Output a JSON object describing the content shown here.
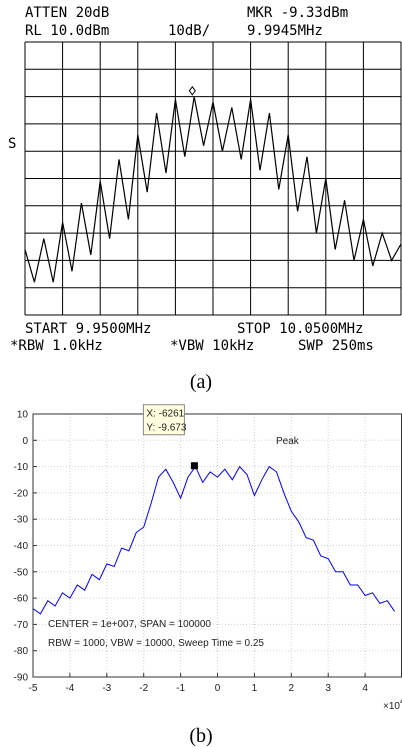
{
  "chart_data": [
    {
      "type": "line",
      "caption": "(a)",
      "header": [
        "ATTEN 20dB",
        "RL 10.0dBm",
        "10dB/",
        "MKR -9.33dBm",
        "9.9945MHz"
      ],
      "side_label": "S",
      "footer": [
        "START 9.9500MHz",
        "STOP 10.0500MHz",
        "*RBW 1.0kHz",
        "*VBW 10kHz",
        "SWP 250ms"
      ],
      "x": [
        9.95,
        9.9525,
        9.955,
        9.9575,
        9.96,
        9.9625,
        9.965,
        9.9675,
        9.97,
        9.9725,
        9.975,
        9.9775,
        9.98,
        9.9825,
        9.985,
        9.9875,
        9.99,
        9.9925,
        9.995,
        9.9975,
        10,
        10.0025,
        10.005,
        10.0075,
        10.01,
        10.0125,
        10.015,
        10.0175,
        10.02,
        10.0225,
        10.025,
        10.0275,
        10.03,
        10.0325,
        10.035,
        10.0375,
        10.04,
        10.0425,
        10.045,
        10.0475,
        10.05
      ],
      "series": [
        {
          "color": "#000000",
          "values": [
            -66,
            -78,
            -62,
            -78,
            -56,
            -74,
            -49,
            -68,
            -41,
            -62,
            -33,
            -55,
            -24,
            -45,
            -16,
            -38,
            -11,
            -32,
            -10,
            -28,
            -12,
            -30,
            -14,
            -33,
            -11,
            -37,
            -16,
            -44,
            -24,
            -52,
            -32,
            -60,
            -40,
            -66,
            -48,
            -70,
            -55,
            -72,
            -60,
            -70,
            -64
          ]
        }
      ],
      "marker": {
        "x": 9.9945,
        "y": -9.33
      },
      "xlim": [
        9.95,
        10.05
      ],
      "ylim": [
        -90,
        10
      ],
      "grid_divisions": [
        10,
        10
      ]
    },
    {
      "type": "line",
      "caption": "(b)",
      "x": [
        -5,
        -4.8,
        -4.6,
        -4.4,
        -4.2,
        -4,
        -3.8,
        -3.6,
        -3.4,
        -3.2,
        -3,
        -2.8,
        -2.6,
        -2.4,
        -2.2,
        -2,
        -1.8,
        -1.6,
        -1.4,
        -1.2,
        -1,
        -0.8,
        -0.6,
        -0.4,
        -0.2,
        0,
        0.2,
        0.4,
        0.6,
        0.8,
        1,
        1.2,
        1.4,
        1.6,
        1.8,
        2,
        2.2,
        2.4,
        2.6,
        2.8,
        3,
        3.2,
        3.4,
        3.6,
        3.8,
        4,
        4.2,
        4.4,
        4.6,
        4.8
      ],
      "series": [
        {
          "color": "#0000ff",
          "values": [
            -64,
            -66,
            -61,
            -63,
            -58,
            -60,
            -55,
            -57,
            -51,
            -53,
            -47,
            -48,
            -41,
            -42,
            -35,
            -33,
            -24,
            -14,
            -11,
            -16,
            -22,
            -14,
            -10,
            -16,
            -12,
            -14,
            -11,
            -15,
            -10,
            -13,
            -21,
            -15,
            -10,
            -12,
            -20,
            -27,
            -31,
            -37,
            -38,
            -44,
            -45,
            -50,
            -50,
            -55,
            -55,
            -59,
            -58,
            -62,
            -61,
            -65
          ]
        }
      ],
      "xlim": [
        -5,
        5
      ],
      "ylim": [
        -90,
        10
      ],
      "xticks": [
        -5,
        -4,
        -3,
        -2,
        -1,
        0,
        1,
        2,
        3,
        4
      ],
      "yticks": [
        10,
        0,
        -10,
        -20,
        -30,
        -40,
        -50,
        -60,
        -70,
        -80,
        -90
      ],
      "x_multiplier": "×10",
      "x_multiplier_exp": 4,
      "grid": true,
      "datatip": {
        "x": -0.6261,
        "y": -9.673,
        "labels": [
          "X: -6261",
          "Y: -9.673"
        ]
      },
      "annotations": [
        "Peak",
        "CENTER = 1e+007, SPAN = 100000",
        "RBW = 1000, VBW = 10000, Sweep Time = 0.25"
      ]
    }
  ]
}
